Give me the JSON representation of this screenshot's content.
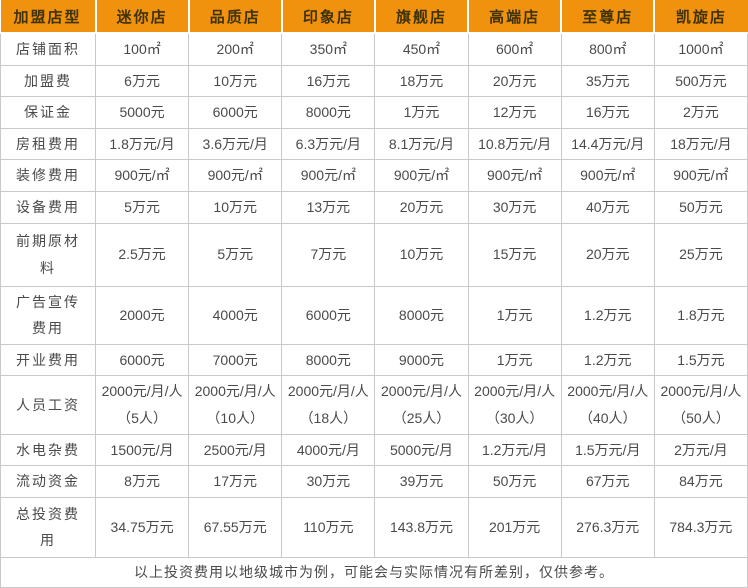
{
  "colors": {
    "header_bg": "#F0920D",
    "header_text": "#3F3208",
    "body_text": "#4A4A4A",
    "grid": "#C9C9C9"
  },
  "table": {
    "header": [
      "加盟店型",
      "迷你店",
      "品质店",
      "印象店",
      "旗舰店",
      "高端店",
      "至尊店",
      "凯旋店"
    ],
    "rows": [
      {
        "label": "店铺面积",
        "values": [
          "100㎡",
          "200㎡",
          "350㎡",
          "450㎡",
          "600㎡",
          "800㎡",
          "1000㎡"
        ]
      },
      {
        "label": "加盟费",
        "values": [
          "6万元",
          "10万元",
          "16万元",
          "18万元",
          "20万元",
          "35万元",
          "500万元"
        ]
      },
      {
        "label": "保证金",
        "values": [
          "5000元",
          "6000元",
          "8000元",
          "1万元",
          "12万元",
          "16万元",
          "2万元"
        ]
      },
      {
        "label": "房租费用",
        "values": [
          "1.8万元/月",
          "3.6万元/月",
          "6.3万元/月",
          "8.1万元/月",
          "10.8万元/月",
          "14.4万元/月",
          "18万元/月"
        ]
      },
      {
        "label": "装修费用",
        "values": [
          "900元/㎡",
          "900元/㎡",
          "900元/㎡",
          "900元/㎡",
          "900元/㎡",
          "900元/㎡",
          "900元/㎡"
        ]
      },
      {
        "label": "设备费用",
        "values": [
          "5万元",
          "10万元",
          "13万元",
          "20万元",
          "30万元",
          "40万元",
          "50万元"
        ]
      },
      {
        "label": "前期原材料",
        "values": [
          "2.5万元",
          "5万元",
          "7万元",
          "10万元",
          "15万元",
          "20万元",
          "25万元"
        ]
      },
      {
        "label": "广告宣传费用",
        "values": [
          "2000元",
          "4000元",
          "6000元",
          "8000元",
          "1万元",
          "1.2万元",
          "1.8万元"
        ]
      },
      {
        "label": "开业费用",
        "values": [
          "6000元",
          "7000元",
          "8000元",
          "9000元",
          "1万元",
          "1.2万元",
          "1.5万元"
        ]
      },
      {
        "label": "人员工资",
        "values": [
          "2000元/月/人\n（5人）",
          "2000元/月/人\n（10人）",
          "2000元/月/人\n（18人）",
          "2000元/月/人\n（25人）",
          "2000元/月/人\n（30人）",
          "2000元/月/人\n（40人）",
          "2000元/月/人\n（50人）"
        ]
      },
      {
        "label": "水电杂费",
        "values": [
          "1500元/月",
          "2500元/月",
          "4000元/月",
          "5000元/月",
          "1.2万元/月",
          "1.5万元/月",
          "2万元/月"
        ]
      },
      {
        "label": "流动资金",
        "values": [
          "8万元",
          "17万元",
          "30万元",
          "39万元",
          "50万元",
          "67万元",
          "84万元"
        ]
      },
      {
        "label": "总投资费用",
        "values": [
          "34.75万元",
          "67.55万元",
          "110万元",
          "143.8万元",
          "201万元",
          "276.3万元",
          "784.3万元"
        ]
      }
    ],
    "footer": "以上投资费用以地级城市为例，可能会与实际情况有所差别，仅供参考。"
  }
}
